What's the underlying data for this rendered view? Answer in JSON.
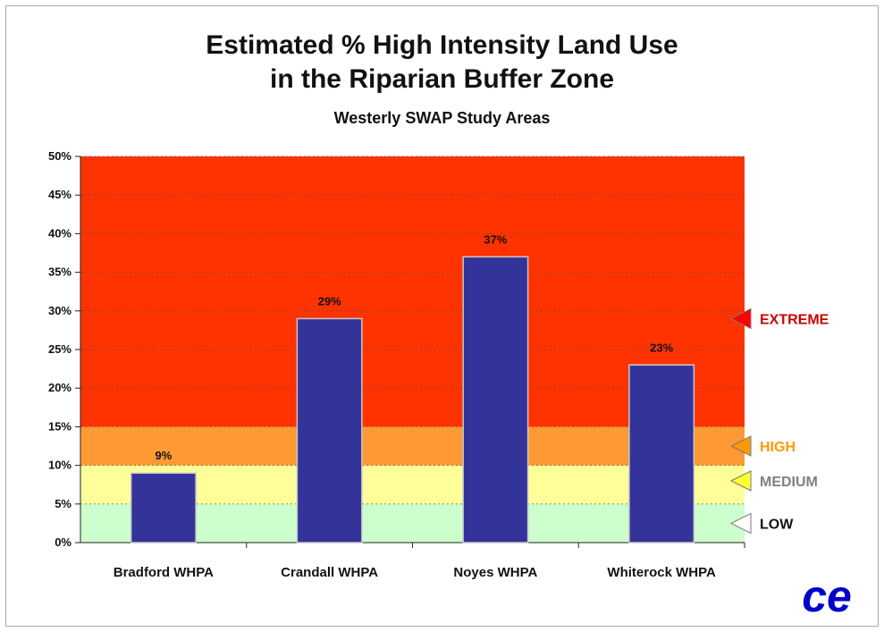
{
  "chart_data": {
    "type": "bar",
    "title_line1": "Estimated % High Intensity Land Use",
    "title_line2": "in the Riparian Buffer Zone",
    "subtitle": "Westerly SWAP Study Areas",
    "categories": [
      "Bradford WHPA",
      "Crandall WHPA",
      "Noyes WHPA",
      "Whiterock WHPA"
    ],
    "values": [
      9,
      29,
      37,
      23
    ],
    "data_labels": [
      "9%",
      "29%",
      "37%",
      "23%"
    ],
    "ylim": [
      0,
      50
    ],
    "yticks": [
      0,
      5,
      10,
      15,
      20,
      25,
      30,
      35,
      40,
      45,
      50
    ],
    "ytick_labels": [
      "0%",
      "5%",
      "10%",
      "15%",
      "20%",
      "25%",
      "30%",
      "35%",
      "40%",
      "45%",
      "50%"
    ],
    "gridlines": true,
    "bar_color": "#333399",
    "zones": [
      {
        "label": "LOW",
        "from": 0,
        "to": 5,
        "color": "#ccffcc",
        "text_color": "#111111",
        "arrow_color": "#ffffff",
        "marker_value": 2.5
      },
      {
        "label": "MEDIUM",
        "from": 5,
        "to": 10,
        "color": "#ffff99",
        "text_color": "#808080",
        "arrow_color": "#ffff33",
        "marker_value": 8
      },
      {
        "label": "HIGH",
        "from": 10,
        "to": 15,
        "color": "#ff9933",
        "text_color": "#ff9900",
        "arrow_color": "#ff9900",
        "marker_value": 12.5
      },
      {
        "label": "EXTREME",
        "from": 15,
        "to": 50,
        "color": "#ff3300",
        "text_color": "#cc0000",
        "arrow_color": "#ff0000",
        "marker_value": 29
      }
    ]
  },
  "logo": {
    "name": "ce-logo",
    "text": "ce",
    "color": "#0000cc"
  }
}
